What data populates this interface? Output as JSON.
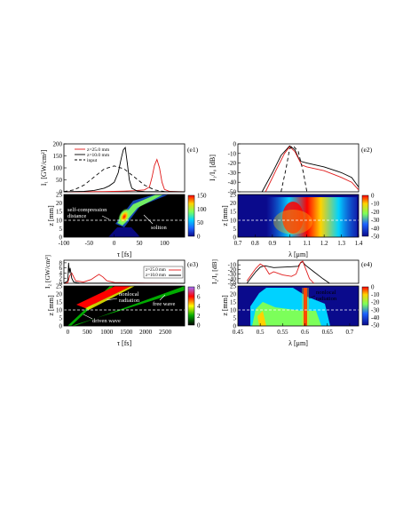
{
  "colors": {
    "red": "#e11b1b",
    "black": "#000000",
    "dashed_white": "#ffffff",
    "map_low": "#0a0a8c",
    "map_high": "#ff0000"
  },
  "chart_data": [
    {
      "id": "e1-top",
      "type": "line",
      "panel_label": "(e1)",
      "ylabel": "I₁ [GW/cm²]",
      "yticks": [
        0,
        50,
        100,
        150,
        200
      ],
      "ylim": [
        0,
        200
      ],
      "xlim": [
        -100,
        140
      ],
      "legend_position": "top-left",
      "series": [
        {
          "name": "z=25.0 mm",
          "color": "#e11b1b",
          "dash": "",
          "x": [
            -100,
            -20,
            0,
            20,
            40,
            60,
            70,
            75,
            80,
            85,
            90,
            95,
            100,
            110,
            140
          ],
          "y": [
            0,
            1,
            2,
            3,
            5,
            8,
            20,
            60,
            110,
            135,
            100,
            40,
            10,
            2,
            0
          ]
        },
        {
          "name": "z=10.0 mm",
          "color": "#000000",
          "dash": "",
          "x": [
            -100,
            -60,
            -40,
            -20,
            -10,
            0,
            8,
            14,
            18,
            22,
            26,
            30,
            35,
            45,
            60,
            140
          ],
          "y": [
            0,
            2,
            6,
            15,
            25,
            40,
            80,
            140,
            175,
            185,
            120,
            50,
            15,
            4,
            1,
            0
          ]
        },
        {
          "name": "input",
          "color": "#000000",
          "dash": "4,3",
          "x": [
            -100,
            -80,
            -60,
            -40,
            -20,
            0,
            20,
            40,
            60,
            80,
            100
          ],
          "y": [
            1,
            8,
            28,
            62,
            95,
            108,
            95,
            62,
            28,
            8,
            1
          ]
        }
      ]
    },
    {
      "id": "e1-map",
      "type": "heatmap",
      "ylabel": "z [mm]",
      "xlabel": "τ [fs]",
      "xticks": [
        -100,
        -50,
        0,
        50,
        100
      ],
      "yticks": [
        0,
        5,
        10,
        15,
        20,
        25
      ],
      "xlim": [
        -100,
        140
      ],
      "ylim": [
        0,
        25
      ],
      "colorbar_ticks": [
        0,
        50,
        100,
        150
      ],
      "dashed_line_z": 10,
      "annotations": [
        "self-compression",
        "distance",
        "soliton"
      ]
    },
    {
      "id": "e2-top",
      "type": "line",
      "panel_label": "(e2)",
      "ylabel": "I₁/I₀ [dB]",
      "yticks": [
        0,
        -10,
        -20,
        -30,
        -40,
        -50
      ],
      "ylim": [
        -50,
        0
      ],
      "xlim": [
        0.7,
        1.4
      ],
      "series": [
        {
          "name": "",
          "color": "#000000",
          "dash": "",
          "x": [
            0.84,
            0.9,
            0.95,
            1.0,
            1.03,
            1.06,
            1.1,
            1.2,
            1.3,
            1.36,
            1.4
          ],
          "y": [
            -50,
            -30,
            -12,
            -2,
            -6,
            -18,
            -20,
            -24,
            -30,
            -35,
            -45
          ]
        },
        {
          "name": "",
          "color": "#e11b1b",
          "dash": "",
          "x": [
            0.86,
            0.92,
            0.97,
            1.0,
            1.03,
            1.07,
            1.1,
            1.2,
            1.3,
            1.36,
            1.4
          ],
          "y": [
            -50,
            -28,
            -10,
            -3,
            -8,
            -22,
            -24,
            -28,
            -35,
            -40,
            -48
          ]
        },
        {
          "name": "",
          "color": "#000000",
          "dash": "4,3",
          "x": [
            0.95,
            0.98,
            1.0,
            1.02,
            1.05,
            1.08,
            1.1
          ],
          "y": [
            -50,
            -25,
            -5,
            -2,
            -8,
            -30,
            -50
          ]
        }
      ]
    },
    {
      "id": "e2-map",
      "type": "heatmap",
      "ylabel": "z [mm]",
      "xlabel": "λ [μm]",
      "xticks": [
        0.7,
        0.8,
        0.9,
        1.0,
        1.1,
        1.2,
        1.3,
        1.4
      ],
      "yticks": [
        0,
        5,
        10,
        15,
        20,
        25
      ],
      "xlim": [
        0.7,
        1.4
      ],
      "ylim": [
        0,
        25
      ],
      "colorbar_ticks": [
        0,
        -10,
        -20,
        -30,
        -40,
        -50
      ],
      "dashed_line_z": 10
    },
    {
      "id": "e3-top",
      "type": "line",
      "panel_label": "(e3)",
      "ylabel": "I₂ [GW/cm²]",
      "yticks": [
        0,
        2,
        4,
        6,
        8
      ],
      "ylim": [
        0,
        9
      ],
      "xlim": [
        -100,
        3000
      ],
      "legend_position": "top-right",
      "series": [
        {
          "name": "z=25.0 mm",
          "color": "#e11b1b",
          "dash": "",
          "x": [
            -100,
            0,
            50,
            100,
            200,
            400,
            600,
            700,
            800,
            900,
            1000,
            1200,
            2000,
            3000
          ],
          "y": [
            0,
            0.3,
            3,
            4,
            1,
            0.5,
            1.5,
            2.5,
            3.5,
            2.5,
            1,
            0.3,
            0.1,
            0
          ]
        },
        {
          "name": "z=10.0 mm",
          "color": "#000000",
          "dash": "",
          "x": [
            -100,
            0,
            20,
            40,
            60,
            100,
            150,
            300,
            3000
          ],
          "y": [
            0,
            1,
            8,
            4,
            6,
            2,
            0.5,
            0.1,
            0
          ]
        }
      ]
    },
    {
      "id": "e3-map",
      "type": "heatmap",
      "ylabel": "z [mm]",
      "xlabel": "τ [fs]",
      "xticks": [
        0,
        500,
        1000,
        1500,
        2000,
        2500
      ],
      "yticks": [
        0,
        5,
        10,
        15,
        20,
        25
      ],
      "xlim": [
        -100,
        3000
      ],
      "ylim": [
        0,
        25
      ],
      "colorbar_ticks": [
        0,
        2,
        4,
        6,
        8
      ],
      "dashed_line_z": 10,
      "annotations": [
        "nonlocal",
        "radiation",
        "free wave",
        "driven wave"
      ]
    },
    {
      "id": "e4-top",
      "type": "line",
      "panel_label": "(e4)",
      "ylabel": "I₂/I₀ [dB]",
      "yticks": [
        -10,
        -20,
        -30,
        -40,
        -50
      ],
      "ylim": [
        -50,
        0
      ],
      "xlim": [
        0.45,
        0.72
      ],
      "series": [
        {
          "name": "",
          "color": "#000000",
          "dash": "",
          "x": [
            0.47,
            0.49,
            0.5,
            0.51,
            0.53,
            0.55,
            0.57,
            0.585,
            0.59,
            0.595,
            0.6,
            0.62,
            0.64,
            0.655
          ],
          "y": [
            -50,
            -25,
            -15,
            -12,
            -16,
            -15,
            -14,
            -13,
            -6,
            -3,
            -10,
            -25,
            -40,
            -50
          ]
        },
        {
          "name": "",
          "color": "#e11b1b",
          "dash": "",
          "x": [
            0.47,
            0.49,
            0.5,
            0.51,
            0.52,
            0.53,
            0.55,
            0.57,
            0.58,
            0.59,
            0.595,
            0.6,
            0.61,
            0.62
          ],
          "y": [
            -45,
            -18,
            -8,
            -14,
            -30,
            -25,
            -32,
            -35,
            -30,
            -5,
            -2,
            -15,
            -40,
            -50
          ]
        }
      ]
    },
    {
      "id": "e4-map",
      "type": "heatmap",
      "ylabel": "z [mm]",
      "xlabel": "λ [μm]",
      "xticks": [
        0.45,
        0.5,
        0.55,
        0.6,
        0.65,
        0.7
      ],
      "yticks": [
        0,
        5,
        10,
        15,
        20,
        25
      ],
      "xlim": [
        0.45,
        0.72
      ],
      "ylim": [
        0,
        25
      ],
      "colorbar_ticks": [
        0,
        -10,
        -20,
        -30,
        -40,
        -50
      ],
      "dashed_line_z": 10,
      "annotations": [
        "nonlocal",
        "radiation"
      ]
    }
  ]
}
